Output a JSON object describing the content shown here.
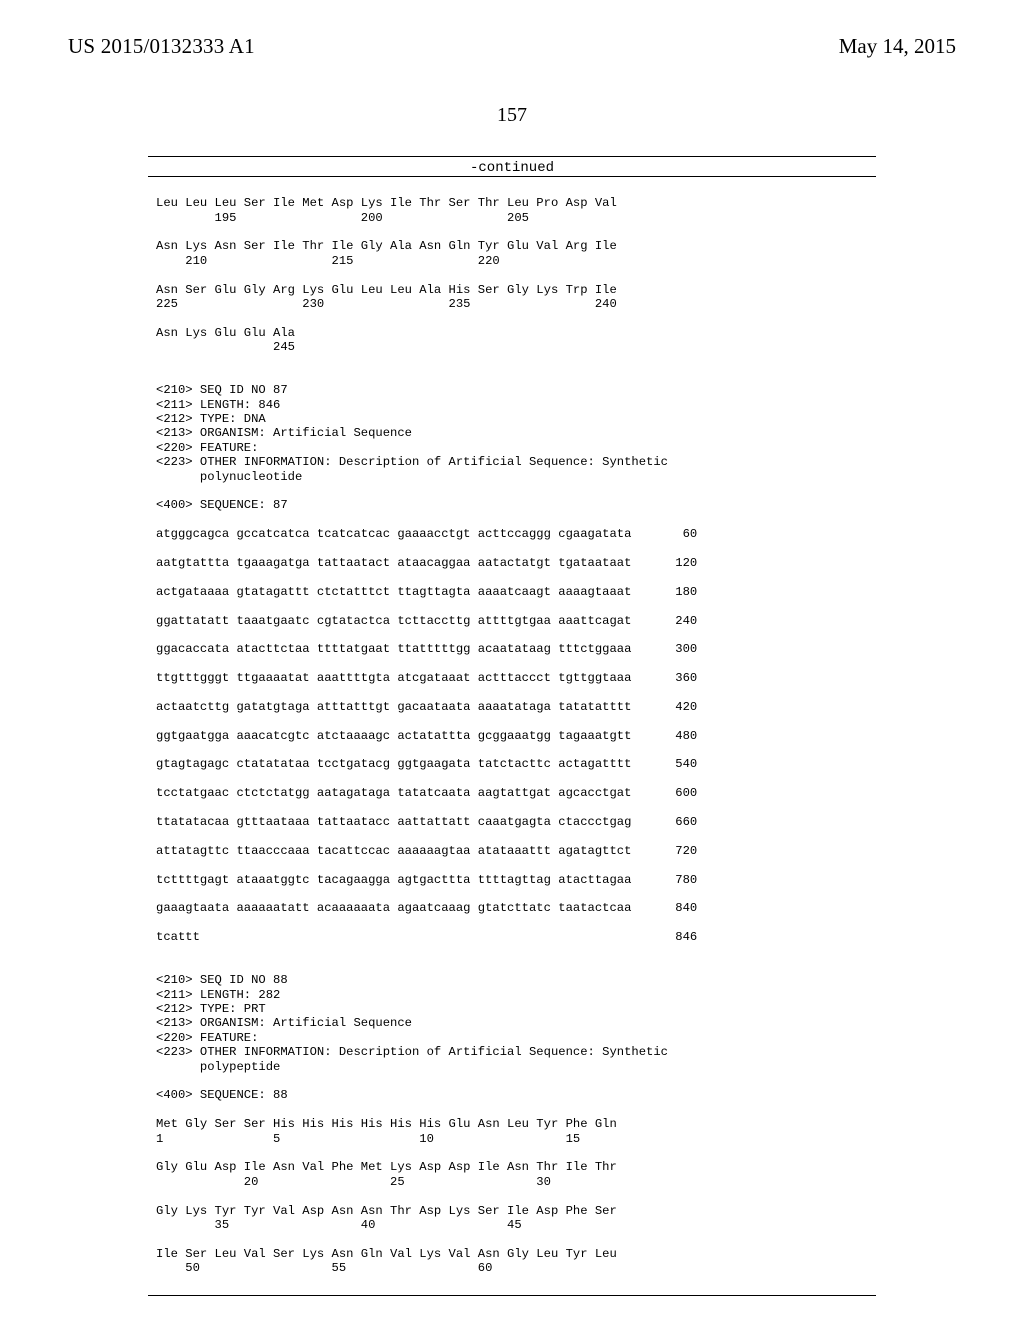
{
  "header": {
    "pub_number": "US 2015/0132333 A1",
    "pub_date": "May 14, 2015"
  },
  "page_number": "157",
  "continued_label": "-continued",
  "listing_text": "Leu Leu Leu Ser Ile Met Asp Lys Ile Thr Ser Thr Leu Pro Asp Val\n        195                 200                 205\n\nAsn Lys Asn Ser Ile Thr Ile Gly Ala Asn Gln Tyr Glu Val Arg Ile\n    210                 215                 220\n\nAsn Ser Glu Gly Arg Lys Glu Leu Leu Ala His Ser Gly Lys Trp Ile\n225                 230                 235                 240\n\nAsn Lys Glu Glu Ala\n                245\n\n\n<210> SEQ ID NO 87\n<211> LENGTH: 846\n<212> TYPE: DNA\n<213> ORGANISM: Artificial Sequence\n<220> FEATURE:\n<223> OTHER INFORMATION: Description of Artificial Sequence: Synthetic\n      polynucleotide\n\n<400> SEQUENCE: 87\n\natgggcagca gccatcatca tcatcatcac gaaaacctgt acttccaggg cgaagatata       60\n\naatgtattta tgaaagatga tattaatact ataacaggaa aatactatgt tgataataat      120\n\nactgataaaa gtatagattt ctctatttct ttagttagta aaaatcaagt aaaagtaaat      180\n\nggattatatt taaatgaatc cgtatactca tcttaccttg attttgtgaa aaattcagat      240\n\nggacaccata atacttctaa ttttatgaat ttatttttgg acaatataag tttctggaaa      300\n\nttgtttgggt ttgaaaatat aaattttgta atcgataaat actttaccct tgttggtaaa      360\n\nactaatcttg gatatgtaga atttatttgt gacaataata aaaatataga tatatatttt      420\n\nggtgaatgga aaacatcgtc atctaaaagc actatattta gcggaaatgg tagaaatgtt      480\n\ngtagtagagc ctatatataa tcctgatacg ggtgaagata tatctacttc actagatttt      540\n\ntcctatgaac ctctctatgg aatagataga tatatcaata aagtattgat agcacctgat      600\n\nttatatacaa gtttaataaa tattaatacc aattattatt caaatgagta ctaccctgag      660\n\nattatagttc ttaacccaaa tacattccac aaaaaagtaa atataaattt agatagttct      720\n\ntcttttgagt ataaatggtc tacagaagga agtgacttta ttttagttag atacttagaa      780\n\ngaaagtaata aaaaaatatt acaaaaaata agaatcaaag gtatcttatc taatactcaa      840\n\ntcattt                                                                 846\n\n\n<210> SEQ ID NO 88\n<211> LENGTH: 282\n<212> TYPE: PRT\n<213> ORGANISM: Artificial Sequence\n<220> FEATURE:\n<223> OTHER INFORMATION: Description of Artificial Sequence: Synthetic\n      polypeptide\n\n<400> SEQUENCE: 88\n\nMet Gly Ser Ser His His His His His His Glu Asn Leu Tyr Phe Gln\n1               5                   10                  15\n\nGly Glu Asp Ile Asn Val Phe Met Lys Asp Asp Ile Asn Thr Ile Thr\n            20                  25                  30\n\nGly Lys Tyr Tyr Val Asp Asn Asn Thr Asp Lys Ser Ile Asp Phe Ser\n        35                  40                  45\n\nIle Ser Leu Val Ser Lys Asn Gln Val Lys Val Asn Gly Leu Tyr Leu\n    50                  55                  60"
}
